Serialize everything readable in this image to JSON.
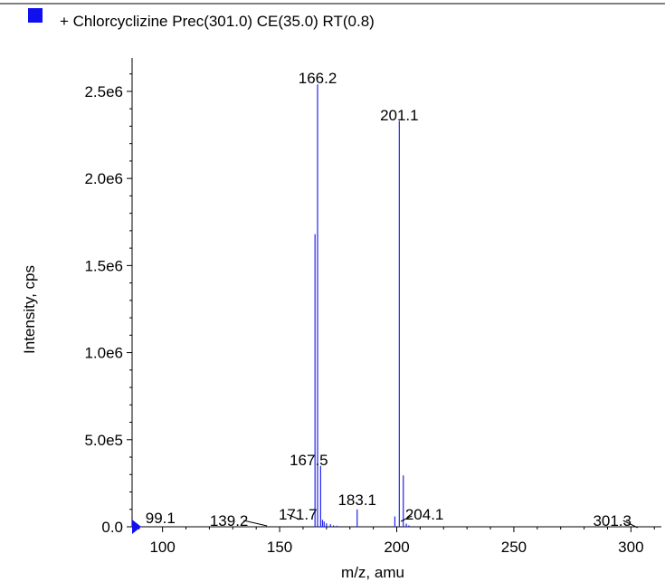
{
  "legend": {
    "text": "+ Chlorcyclizine Prec(301.0) CE(35.0) RT(0.8)",
    "marker_color": "#1010ee"
  },
  "colors": {
    "peak": "#2222ee",
    "axis": "#000000"
  },
  "chart_data": {
    "type": "bar",
    "title": "",
    "xlabel": "m/z, amu",
    "ylabel": "Intensity, cps",
    "xlim": [
      87,
      313
    ],
    "ylim": [
      0,
      2640000
    ],
    "x_ticks": [
      100,
      150,
      200,
      250,
      300
    ],
    "y_ticks": [
      {
        "value": 0,
        "label": "0.0"
      },
      {
        "value": 500000,
        "label": "5.0e5"
      },
      {
        "value": 1000000,
        "label": "1.0e6"
      },
      {
        "value": 1500000,
        "label": "1.5e6"
      },
      {
        "value": 2000000,
        "label": "2.0e6"
      },
      {
        "value": 2500000,
        "label": "2.5e6"
      }
    ],
    "peaks": [
      {
        "x": 165.1,
        "y": 1680000
      },
      {
        "x": 166.2,
        "y": 2540000
      },
      {
        "x": 167.5,
        "y": 350000
      },
      {
        "x": 168.3,
        "y": 40000
      },
      {
        "x": 169.0,
        "y": 30000
      },
      {
        "x": 170.0,
        "y": 20000
      },
      {
        "x": 171.7,
        "y": 15000
      },
      {
        "x": 173.0,
        "y": 8000
      },
      {
        "x": 174.5,
        "y": 6000
      },
      {
        "x": 183.1,
        "y": 100000
      },
      {
        "x": 199.2,
        "y": 60000
      },
      {
        "x": 201.1,
        "y": 2330000
      },
      {
        "x": 202.8,
        "y": 295000
      },
      {
        "x": 204.1,
        "y": 18000
      },
      {
        "x": 205.2,
        "y": 8000
      }
    ],
    "peak_labels": [
      {
        "text": "99.1",
        "x": 99.1
      },
      {
        "text": "139.2",
        "x": 139.2
      },
      {
        "text": "166.2",
        "x": 166.2
      },
      {
        "text": "167.5",
        "x": 167.5
      },
      {
        "text": "171.7",
        "x": 171.7
      },
      {
        "text": "183.1",
        "x": 183.1
      },
      {
        "text": "201.1",
        "x": 201.1
      },
      {
        "text": "204.1",
        "x": 204.1
      },
      {
        "text": "301.3",
        "x": 301.3
      }
    ]
  }
}
